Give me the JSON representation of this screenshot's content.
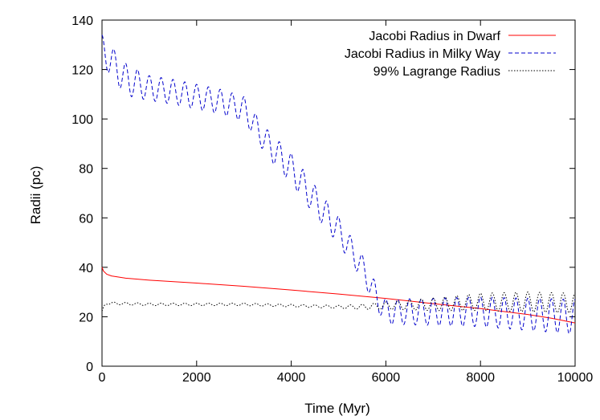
{
  "chart_data": {
    "type": "line",
    "title": "",
    "xlabel": "Time (Myr)",
    "ylabel": "Radii (pc)",
    "xlim": [
      0,
      10000
    ],
    "ylim": [
      0,
      140
    ],
    "xticks": [
      0,
      2000,
      4000,
      6000,
      8000,
      10000
    ],
    "yticks": [
      0,
      20,
      40,
      60,
      80,
      100,
      120,
      140
    ],
    "grid": false,
    "legend_position": "top-right",
    "series": [
      {
        "name": "Jacobi Radius in Dwarf",
        "color": "#ff0000",
        "style": "solid",
        "x": [
          0,
          30,
          100,
          200,
          500,
          1000,
          2000,
          3000,
          4000,
          5000,
          6000,
          7000,
          8000,
          9000,
          9500,
          10000
        ],
        "y": [
          40,
          38.5,
          37.2,
          36.5,
          35.6,
          34.8,
          33.6,
          32.3,
          30.8,
          29.2,
          27.4,
          25.3,
          23.3,
          20.9,
          19.4,
          17.5
        ]
      },
      {
        "name": "Jacobi Radius in Milky Way",
        "color": "#0000cc",
        "style": "dashed",
        "x": [
          0,
          500,
          1000,
          1500,
          2000,
          2500,
          3000,
          3250,
          3500,
          4000,
          4500,
          5000,
          5500,
          5800,
          6000,
          7000,
          8000,
          9000,
          10000
        ],
        "y": [
          128,
          116,
          112.5,
          111,
          109,
          107,
          104,
          97,
          90,
          80,
          67,
          55,
          40,
          28,
          22,
          22,
          22,
          21,
          20
        ],
        "amplitude": [
          6,
          6.5,
          5,
          5,
          5,
          5,
          5,
          5,
          5.5,
          6,
          6,
          5.5,
          5,
          5,
          5,
          5.5,
          6,
          6.5,
          7
        ],
        "oscillation_period": 250
      },
      {
        "name": "99% Lagrange Radius",
        "color": "#000000",
        "style": "dotted",
        "x": [
          0,
          50,
          100,
          1000,
          2000,
          3000,
          4000,
          5000,
          5500,
          6000,
          7000,
          8000,
          9000,
          10000
        ],
        "y": [
          22,
          24.5,
          25.5,
          25,
          25,
          25,
          24.5,
          24,
          24,
          24.5,
          25,
          26,
          26,
          25.5
        ],
        "amplitude": [
          0.3,
          0.4,
          0.5,
          0.5,
          0.5,
          0.5,
          0.5,
          0.6,
          1,
          1.5,
          2.5,
          3.5,
          4,
          4
        ],
        "oscillation_period": 250
      }
    ]
  }
}
